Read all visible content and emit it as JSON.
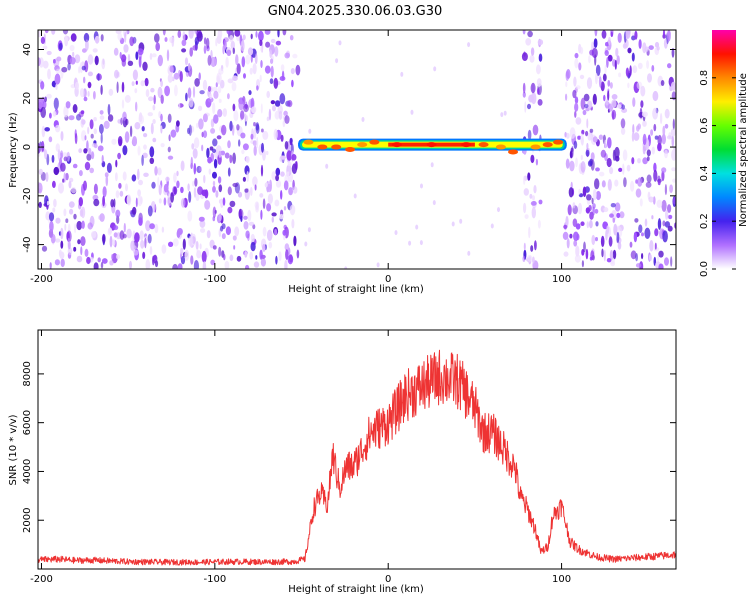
{
  "figure": {
    "title": "GN04.2025.330.06.03.G30"
  },
  "chart_data": [
    {
      "type": "heatmap",
      "title": "GN04.2025.330.06.03.G30",
      "xlabel": "Height of straight line (km)",
      "ylabel": "Frequency (Hz)",
      "xlim": [
        -202,
        166
      ],
      "ylim": [
        -50,
        48
      ],
      "xticks": [
        -200,
        -100,
        0,
        100
      ],
      "yticks": [
        -40,
        -20,
        0,
        20,
        40
      ],
      "noise_regions_km": [
        [
          -202,
          -52
        ],
        [
          78,
          88
        ],
        [
          102,
          166
        ]
      ],
      "clean_region_km": [
        -52,
        102
      ],
      "signal_band": {
        "freq_hz": 1,
        "x_start_km": -52,
        "x_end_km": 103,
        "peak_points": [
          {
            "x": -46,
            "f": 2,
            "amp": 0.85
          },
          {
            "x": -38,
            "f": 0,
            "amp": 0.9
          },
          {
            "x": -30,
            "f": 0,
            "amp": 0.9
          },
          {
            "x": -22,
            "f": -1,
            "amp": 0.9
          },
          {
            "x": -15,
            "f": 1,
            "amp": 0.85
          },
          {
            "x": -8,
            "f": 2,
            "amp": 0.9
          },
          {
            "x": 5,
            "f": 1,
            "amp": 1.0
          },
          {
            "x": 25,
            "f": 1,
            "amp": 1.0
          },
          {
            "x": 45,
            "f": 1,
            "amp": 1.0
          },
          {
            "x": 55,
            "f": 1,
            "amp": 0.9
          },
          {
            "x": 65,
            "f": 0,
            "amp": 0.8
          },
          {
            "x": 72,
            "f": -2,
            "amp": 0.9
          },
          {
            "x": 85,
            "f": 0,
            "amp": 0.85
          },
          {
            "x": 92,
            "f": 1,
            "amp": 0.9
          },
          {
            "x": 98,
            "f": 2,
            "amp": 0.9
          }
        ]
      },
      "colorbar": {
        "label": "Normalized spectral amplitude",
        "range": [
          0,
          1
        ],
        "ticks": [
          "0.0",
          "0.2",
          "0.4",
          "0.6",
          "0.8"
        ],
        "tick_values": [
          0,
          0.2,
          0.4,
          0.6,
          0.8
        ]
      }
    },
    {
      "type": "line",
      "xlabel": "Height of straight line (km)",
      "ylabel": "SNR (10 * v/v)",
      "xlim": [
        -202,
        166
      ],
      "ylim": [
        0,
        9800
      ],
      "xticks": [
        -200,
        -100,
        0,
        100
      ],
      "yticks": [
        2000,
        4000,
        6000,
        8000
      ],
      "series": [
        {
          "name": "SNR",
          "color": "#ee3333",
          "x": [
            -202,
            -190,
            -180,
            -170,
            -150,
            -130,
            -110,
            -90,
            -70,
            -55,
            -48,
            -43,
            -39,
            -35,
            -32,
            -28,
            -24,
            -20,
            -15,
            -10,
            -5,
            0,
            5,
            10,
            15,
            20,
            25,
            30,
            35,
            40,
            45,
            50,
            55,
            60,
            65,
            70,
            73,
            76,
            80,
            85,
            88,
            92,
            95,
            100,
            105,
            110,
            120,
            130,
            140,
            150,
            160,
            166
          ],
          "y": [
            380,
            400,
            350,
            360,
            300,
            280,
            280,
            300,
            290,
            300,
            400,
            2500,
            3100,
            2600,
            4700,
            3300,
            4200,
            4200,
            4900,
            5600,
            5800,
            6000,
            6500,
            7100,
            7300,
            7500,
            7700,
            7900,
            7800,
            7700,
            7200,
            6600,
            5600,
            5600,
            5100,
            4500,
            4200,
            3000,
            2500,
            1600,
            700,
            900,
            2200,
            2600,
            1100,
            800,
            500,
            400,
            450,
            500,
            550,
            600
          ]
        }
      ]
    }
  ]
}
